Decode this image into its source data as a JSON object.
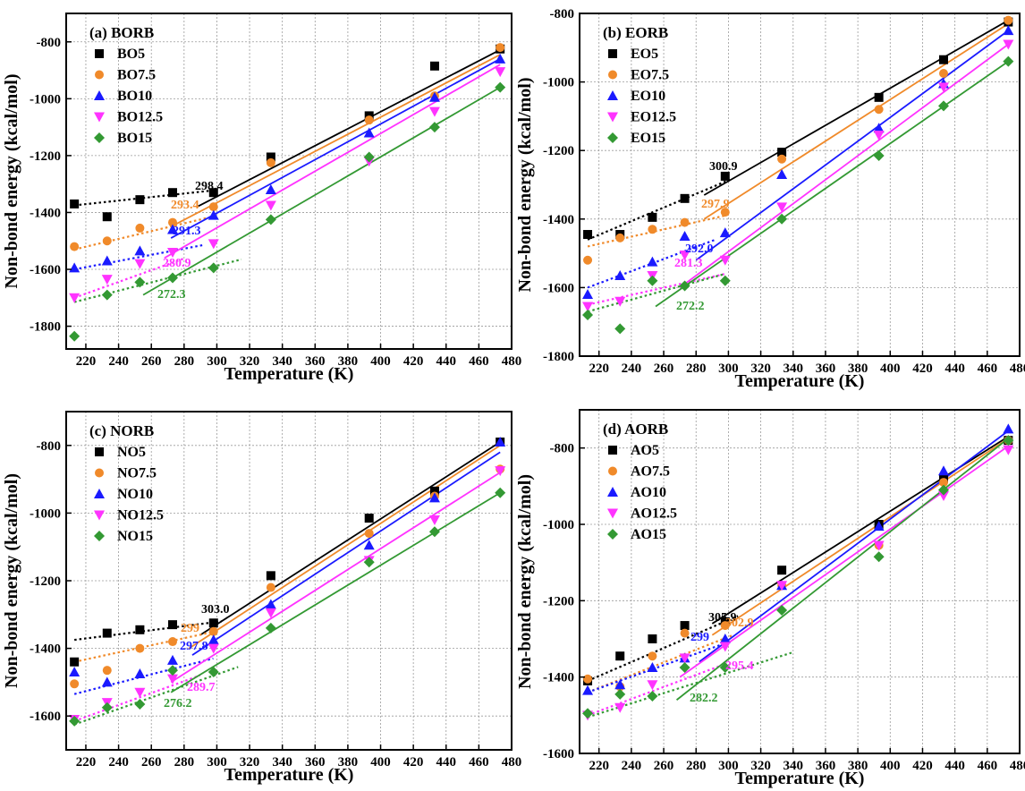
{
  "figure": {
    "ylabel": "Non-bond energy (kcal/mol)",
    "xlabel": "Temperature (K)"
  },
  "chart_data": [
    {
      "type": "scatter",
      "title": "(a) BORB",
      "xlabel": "Temperature (K)",
      "ylabel": "Non-bond energy (kcal/mol)",
      "xlim": [
        208,
        480
      ],
      "ylim": [
        -1880,
        -700
      ],
      "xticks": [
        220,
        240,
        260,
        280,
        300,
        320,
        340,
        360,
        380,
        400,
        420,
        440,
        460,
        480
      ],
      "yticks": [
        -800,
        -1000,
        -1200,
        -1400,
        -1600,
        -1800
      ],
      "grid": true,
      "legend_position": "top-left",
      "x": [
        213,
        233,
        253,
        273,
        298,
        333,
        393,
        433,
        473
      ],
      "series": [
        {
          "name": "BO5",
          "color": "#000000",
          "marker": "square",
          "values": [
            -1370,
            -1415,
            -1355,
            -1330,
            -1330,
            -1205,
            -1060,
            -885,
            -825
          ],
          "fit_low": [
            [
              213,
              -1375
            ],
            [
              298.4,
              -1322
            ]
          ],
          "fit_high": [
            [
              288,
              -1380
            ],
            [
              473,
              -828
            ]
          ],
          "tg": "298.4"
        },
        {
          "name": "BO7.5",
          "color": "#f08a2a",
          "marker": "circle",
          "values": [
            -1520,
            -1500,
            -1455,
            -1435,
            -1380,
            -1225,
            -1075,
            -990,
            -820
          ],
          "fit_low": [
            [
              213,
              -1530
            ],
            [
              293.4,
              -1420
            ]
          ],
          "fit_high": [
            [
              272,
              -1450
            ],
            [
              473,
              -845
            ]
          ],
          "tg": "293.4"
        },
        {
          "name": "BO10",
          "color": "#1a1aff",
          "marker": "triangle-up",
          "values": [
            -1595,
            -1570,
            -1535,
            -1460,
            -1410,
            -1320,
            -1120,
            -995,
            -860
          ],
          "fit_low": [
            [
              213,
              -1600
            ],
            [
              291.3,
              -1515
            ]
          ],
          "fit_high": [
            [
              272,
              -1490
            ],
            [
              473,
              -860
            ]
          ],
          "tg": "291.3"
        },
        {
          "name": "BO12.5",
          "color": "#ff33ff",
          "marker": "triangle-down",
          "values": [
            -1700,
            -1635,
            -1580,
            -1540,
            -1510,
            -1375,
            -1220,
            -1045,
            -905
          ],
          "fit_low": [
            [
              213,
              -1700
            ],
            [
              280.9,
              -1560
            ]
          ],
          "fit_high": [
            [
              268,
              -1560
            ],
            [
              473,
              -880
            ]
          ],
          "tg": "280.9"
        },
        {
          "name": "BO15",
          "color": "#339933",
          "marker": "diamond",
          "values": [
            -1835,
            -1690,
            -1645,
            -1630,
            -1595,
            -1425,
            -1205,
            -1100,
            -960
          ],
          "fit_low": [
            [
              213,
              -1715
            ],
            [
              315,
              -1565
            ]
          ],
          "fit_high": [
            [
              255,
              -1690
            ],
            [
              473,
              -960
            ]
          ],
          "tg": "272.3"
        }
      ]
    },
    {
      "type": "scatter",
      "title": "(b) EORB",
      "xlabel": "Temperature (K)",
      "ylabel": "Non-bond energy (kcal/mol)",
      "xlim": [
        208,
        480
      ],
      "ylim": [
        -1800,
        -800
      ],
      "xticks": [
        220,
        240,
        260,
        280,
        300,
        320,
        340,
        360,
        380,
        400,
        420,
        440,
        460,
        480
      ],
      "yticks": [
        -800,
        -1000,
        -1200,
        -1400,
        -1600,
        -1800
      ],
      "grid": true,
      "legend_position": "top-left",
      "x": [
        213,
        233,
        253,
        273,
        298,
        333,
        393,
        433,
        473
      ],
      "series": [
        {
          "name": "EO5",
          "color": "#000000",
          "marker": "square",
          "values": [
            -1445,
            -1445,
            -1395,
            -1340,
            -1275,
            -1205,
            -1045,
            -935,
            -825
          ],
          "fit_low": [
            [
              213,
              -1460
            ],
            [
              300.9,
              -1285
            ]
          ],
          "fit_high": [
            [
              285,
              -1330
            ],
            [
              473,
              -820
            ]
          ],
          "tg": "300.9"
        },
        {
          "name": "EO7.5",
          "color": "#f08a2a",
          "marker": "circle",
          "values": [
            -1520,
            -1455,
            -1430,
            -1410,
            -1380,
            -1225,
            -1080,
            -975,
            -820
          ],
          "fit_low": [
            [
              213,
              -1480
            ],
            [
              297.9,
              -1390
            ]
          ],
          "fit_high": [
            [
              285,
              -1400
            ],
            [
              473,
              -830
            ]
          ],
          "tg": "297.9"
        },
        {
          "name": "EO10",
          "color": "#1a1aff",
          "marker": "triangle-up",
          "values": [
            -1620,
            -1565,
            -1525,
            -1450,
            -1440,
            -1270,
            -1135,
            -1005,
            -850
          ],
          "fit_low": [
            [
              213,
              -1600
            ],
            [
              292.0,
              -1460
            ]
          ],
          "fit_high": [
            [
              280,
              -1520
            ],
            [
              473,
              -850
            ]
          ],
          "tg": "292.0"
        },
        {
          "name": "EO12.5",
          "color": "#ff33ff",
          "marker": "triangle-down",
          "values": [
            -1655,
            -1640,
            -1565,
            -1505,
            -1520,
            -1365,
            -1155,
            -1015,
            -890
          ],
          "fit_low": [
            [
              213,
              -1650
            ],
            [
              298,
              -1560
            ]
          ],
          "fit_high": [
            [
              270,
              -1600
            ],
            [
              473,
              -890
            ]
          ],
          "tg": "281.3"
        },
        {
          "name": "EO15",
          "color": "#339933",
          "marker": "diamond",
          "values": [
            -1680,
            -1720,
            -1580,
            -1595,
            -1580,
            -1400,
            -1215,
            -1070,
            -940
          ],
          "fit_low": [
            [
              213,
              -1670
            ],
            [
              298,
              -1560
            ]
          ],
          "fit_high": [
            [
              255,
              -1655
            ],
            [
              473,
              -940
            ]
          ],
          "tg": "272.2"
        }
      ]
    },
    {
      "type": "scatter",
      "title": "(c) NORB",
      "xlabel": "Temperature (K)",
      "ylabel": "Non-bond energy (kcal/mol)",
      "xlim": [
        208,
        480
      ],
      "ylim": [
        -1700,
        -700
      ],
      "xticks": [
        220,
        240,
        260,
        280,
        300,
        320,
        340,
        360,
        380,
        400,
        420,
        440,
        460,
        480
      ],
      "yticks": [
        -800,
        -1000,
        -1200,
        -1400,
        -1600
      ],
      "grid": true,
      "legend_position": "top-left",
      "x": [
        213,
        233,
        253,
        273,
        298,
        333,
        393,
        433,
        473
      ],
      "series": [
        {
          "name": "NO5",
          "color": "#000000",
          "marker": "square",
          "values": [
            -1440,
            -1355,
            -1345,
            -1330,
            -1325,
            -1185,
            -1015,
            -935,
            -790
          ],
          "fit_low": [
            [
              213,
              -1375
            ],
            [
              303.0,
              -1320
            ]
          ],
          "fit_high": [
            [
              290,
              -1360
            ],
            [
              473,
              -790
            ]
          ],
          "tg": "303.0"
        },
        {
          "name": "NO7.5",
          "color": "#f08a2a",
          "marker": "circle",
          "values": [
            -1505,
            -1465,
            -1400,
            -1380,
            -1350,
            -1220,
            -1060,
            -950,
            -870
          ],
          "fit_low": [
            [
              213,
              -1440
            ],
            [
              299,
              -1350
            ]
          ],
          "fit_high": [
            [
              283,
              -1400
            ],
            [
              473,
              -800
            ]
          ],
          "tg": "299"
        },
        {
          "name": "NO10",
          "color": "#1a1aff",
          "marker": "triangle-up",
          "values": [
            -1470,
            -1500,
            -1475,
            -1435,
            -1375,
            -1270,
            -1095,
            -955,
            -790
          ],
          "fit_low": [
            [
              213,
              -1535
            ],
            [
              297.8,
              -1430
            ]
          ],
          "fit_high": [
            [
              285,
              -1420
            ],
            [
              473,
              -820
            ]
          ],
          "tg": "297.8"
        },
        {
          "name": "NO12.5",
          "color": "#ff33ff",
          "marker": "triangle-down",
          "values": [
            -1610,
            -1560,
            -1530,
            -1490,
            -1400,
            -1295,
            -1140,
            -1020,
            -875
          ],
          "fit_low": [
            [
              213,
              -1615
            ],
            [
              289.7,
              -1480
            ]
          ],
          "fit_high": [
            [
              272,
              -1500
            ],
            [
              473,
              -880
            ]
          ],
          "tg": "289.7"
        },
        {
          "name": "NO15",
          "color": "#339933",
          "marker": "diamond",
          "values": [
            -1615,
            -1575,
            -1565,
            -1465,
            -1470,
            -1340,
            -1145,
            -1055,
            -940
          ],
          "fit_low": [
            [
              213,
              -1625
            ],
            [
              313,
              -1455
            ]
          ],
          "fit_high": [
            [
              272,
              -1530
            ],
            [
              473,
              -940
            ]
          ],
          "tg": "276.2"
        }
      ]
    },
    {
      "type": "scatter",
      "title": "(d) AORB",
      "xlabel": "Temperature (K)",
      "ylabel": "Non-bond energy (kcal/mol)",
      "xlim": [
        208,
        480
      ],
      "ylim": [
        -1600,
        -700
      ],
      "xticks": [
        220,
        240,
        260,
        280,
        300,
        320,
        340,
        360,
        380,
        400,
        420,
        440,
        460,
        480
      ],
      "yticks": [
        -800,
        -1000,
        -1200,
        -1400,
        -1600
      ],
      "grid": true,
      "legend_position": "top-left",
      "x": [
        213,
        233,
        253,
        273,
        298,
        333,
        393,
        433,
        473
      ],
      "series": [
        {
          "name": "AO5",
          "color": "#000000",
          "marker": "square",
          "values": [
            -1410,
            -1345,
            -1300,
            -1265,
            -1255,
            -1120,
            -1000,
            -880,
            -780
          ],
          "fit_low": [
            [
              213,
              -1410
            ],
            [
              305.9,
              -1240
            ]
          ],
          "fit_high": [
            [
              290,
              -1260
            ],
            [
              473,
              -770
            ]
          ],
          "tg": "305.9"
        },
        {
          "name": "AO7.5",
          "color": "#f08a2a",
          "marker": "circle",
          "values": [
            -1405,
            -1425,
            -1345,
            -1285,
            -1265,
            -1160,
            -1055,
            -890,
            -780
          ],
          "fit_low": [
            [
              213,
              -1440
            ],
            [
              302.9,
              -1290
            ]
          ],
          "fit_high": [
            [
              290,
              -1290
            ],
            [
              473,
              -775
            ]
          ],
          "tg": "302.9"
        },
        {
          "name": "AO10",
          "color": "#1a1aff",
          "marker": "triangle-up",
          "values": [
            -1435,
            -1420,
            -1375,
            -1350,
            -1300,
            -1160,
            -1005,
            -860,
            -750
          ],
          "fit_low": [
            [
              213,
              -1440
            ],
            [
              299,
              -1310
            ]
          ],
          "fit_high": [
            [
              282,
              -1360
            ],
            [
              473,
              -755
            ]
          ],
          "tg": "299"
        },
        {
          "name": "AO12.5",
          "color": "#ff33ff",
          "marker": "triangle-down",
          "values": [
            -1500,
            -1480,
            -1420,
            -1350,
            -1320,
            -1160,
            -1055,
            -925,
            -805
          ],
          "fit_low": [
            [
              213,
              -1500
            ],
            [
              295.4,
              -1370
            ]
          ],
          "fit_high": [
            [
              270,
              -1400
            ],
            [
              473,
              -795
            ]
          ],
          "tg": "295.4"
        },
        {
          "name": "AO15",
          "color": "#339933",
          "marker": "diamond",
          "values": [
            -1495,
            -1445,
            -1450,
            -1375,
            -1375,
            -1225,
            -1085,
            -910,
            -780
          ],
          "fit_low": [
            [
              213,
              -1505
            ],
            [
              340,
              -1335
            ]
          ],
          "fit_high": [
            [
              268,
              -1460
            ],
            [
              473,
              -775
            ]
          ],
          "tg": "282.2"
        }
      ]
    }
  ]
}
